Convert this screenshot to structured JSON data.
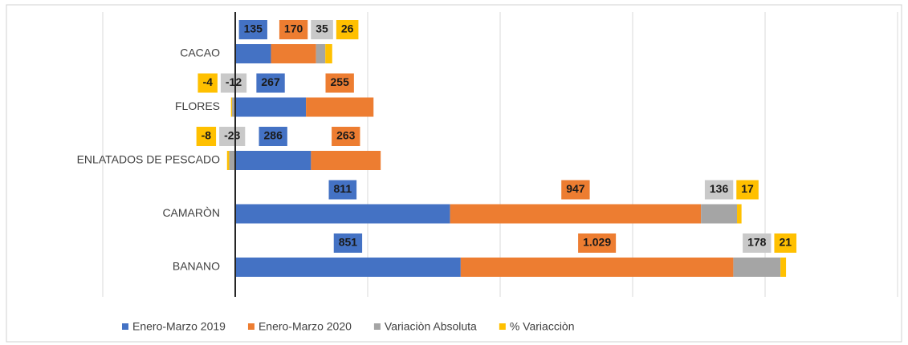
{
  "chart_data": {
    "type": "stacked-bar-horizontal",
    "categories": [
      "CACAO",
      "FLORES",
      "ENLATADOS DE PESCADO",
      "CAMARÒN",
      "BANANO"
    ],
    "series": [
      {
        "name": "Enero-Marzo 2019",
        "color": "#4472c4",
        "values": [
          135,
          267,
          286,
          811,
          851
        ]
      },
      {
        "name": "Enero-Marzo 2020",
        "color": "#ed7d31",
        "values": [
          170,
          255,
          263,
          947,
          1029
        ],
        "value_labels": [
          "170",
          "255",
          "263",
          "947",
          "1.029"
        ]
      },
      {
        "name": "Variaciòn Absoluta",
        "color": "#a5a5a5",
        "values": [
          35,
          -12,
          -23,
          136,
          178
        ]
      },
      {
        "name": "% Variacciòn",
        "color": "#ffc000",
        "values": [
          26,
          -4,
          -8,
          17,
          21
        ]
      }
    ],
    "xlim": [
      -500,
      2500
    ],
    "xticks": [
      -500,
      0,
      500,
      1000,
      1500,
      2000,
      2500
    ],
    "grid": true,
    "legend": "bottom"
  }
}
